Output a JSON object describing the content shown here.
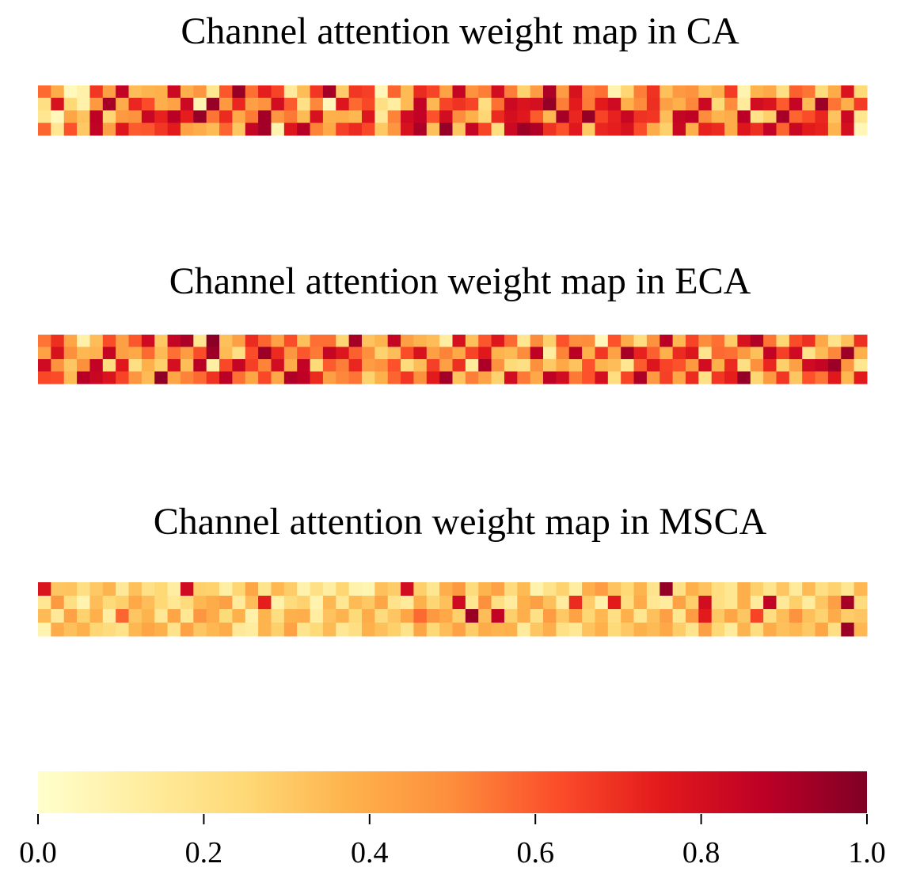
{
  "chart_data": [
    {
      "type": "heatmap",
      "title": "Channel attention weight map in CA",
      "rows": 4,
      "cols": 64,
      "values": [
        [
          0.57,
          0.4,
          0.04,
          0.1,
          0.68,
          0.44,
          0.86,
          0.34,
          0.37,
          0.38,
          0.83,
          0.39,
          0.47,
          0.17,
          0.61,
          0.95,
          0.56,
          0.74,
          0.65,
          0.14,
          0.34,
          0.68,
          0.92,
          0.29,
          0.68,
          0.66,
          0.06,
          0.58,
          0.35,
          0.71,
          0.65,
          0.43,
          0.85,
          0.48,
          0.53,
          0.81,
          0.53,
          0.27,
          0.45,
          0.91,
          0.45,
          0.79,
          0.53,
          0.56,
          0.08,
          0.26,
          0.53,
          0.69,
          0.33,
          0.46,
          0.48,
          0.33,
          0.39,
          0.67,
          0.08,
          0.37,
          0.41,
          0.21,
          0.59,
          0.55,
          0.23,
          0.4,
          0.78,
          0.24
        ],
        [
          0.21,
          0.79,
          0.25,
          0.1,
          0.46,
          0.92,
          0.4,
          0.72,
          0.63,
          0.39,
          0.43,
          0.83,
          0.07,
          0.95,
          0.46,
          0.72,
          0.44,
          0.48,
          0.81,
          0.6,
          0.2,
          0.51,
          0.05,
          0.77,
          0.57,
          0.64,
          0.21,
          0.12,
          0.35,
          0.86,
          0.36,
          0.65,
          0.69,
          0.65,
          0.22,
          0.56,
          0.83,
          0.78,
          0.8,
          0.96,
          0.53,
          0.75,
          0.54,
          0.75,
          0.82,
          0.38,
          0.5,
          0.7,
          0.44,
          0.38,
          0.51,
          0.83,
          0.24,
          0.5,
          0.14,
          0.81,
          0.78,
          0.6,
          0.85,
          0.35,
          0.94,
          0.55,
          0.39,
          0.67
        ],
        [
          0.17,
          0.05,
          0.42,
          0.32,
          0.87,
          0.26,
          0.46,
          0.48,
          0.84,
          0.73,
          0.88,
          0.74,
          0.96,
          0.55,
          0.71,
          0.41,
          0.54,
          0.93,
          0.47,
          0.54,
          0.35,
          0.79,
          0.38,
          0.39,
          0.36,
          0.77,
          0.15,
          0.52,
          0.82,
          0.86,
          0.62,
          0.81,
          0.5,
          0.38,
          0.26,
          0.71,
          0.8,
          0.76,
          0.6,
          0.36,
          0.92,
          0.72,
          0.96,
          0.65,
          0.73,
          0.84,
          0.69,
          0.68,
          0.34,
          0.85,
          0.87,
          0.5,
          0.37,
          0.4,
          0.88,
          0.19,
          0.28,
          0.92,
          0.58,
          0.63,
          0.72,
          0.32,
          0.83,
          0.17
        ],
        [
          0.58,
          0.16,
          0.62,
          0.3,
          0.86,
          0.44,
          0.77,
          0.6,
          0.61,
          0.68,
          0.75,
          0.43,
          0.4,
          0.35,
          0.58,
          0.31,
          0.85,
          0.93,
          0.08,
          0.77,
          0.89,
          0.52,
          0.41,
          0.66,
          0.71,
          0.64,
          0.3,
          0.47,
          0.79,
          0.91,
          0.33,
          0.96,
          0.31,
          0.85,
          0.65,
          0.22,
          0.83,
          0.94,
          0.9,
          0.69,
          0.62,
          0.76,
          0.3,
          0.72,
          0.74,
          0.79,
          0.63,
          0.4,
          0.28,
          0.84,
          0.39,
          0.73,
          0.71,
          0.4,
          0.77,
          0.7,
          0.86,
          0.58,
          0.84,
          0.75,
          0.73,
          0.37,
          0.8,
          0.06
        ]
      ]
    },
    {
      "type": "heatmap",
      "title": "Channel attention weight map in ECA",
      "rows": 4,
      "cols": 64,
      "values": [
        [
          0.55,
          0.7,
          0.42,
          0.1,
          0.34,
          0.63,
          0.44,
          0.61,
          0.82,
          0.3,
          0.85,
          0.91,
          0.17,
          0.98,
          0.33,
          0.44,
          0.71,
          0.58,
          0.43,
          0.63,
          0.33,
          0.56,
          0.56,
          0.26,
          0.92,
          0.32,
          0.37,
          0.85,
          0.44,
          0.37,
          0.34,
          0.12,
          0.8,
          0.33,
          0.61,
          0.77,
          0.57,
          0.17,
          0.5,
          0.28,
          0.62,
          0.49,
          0.5,
          0.05,
          0.62,
          0.4,
          0.22,
          0.48,
          0.88,
          0.36,
          0.65,
          0.5,
          0.56,
          0.29,
          0.79,
          0.9,
          0.55,
          0.26,
          0.63,
          0.7,
          0.41,
          0.19,
          0.33,
          0.7
        ],
        [
          0.43,
          0.79,
          0.49,
          0.36,
          0.37,
          0.85,
          0.44,
          0.41,
          0.57,
          0.35,
          0.56,
          0.45,
          0.63,
          0.94,
          0.35,
          0.21,
          0.63,
          0.94,
          0.71,
          0.47,
          0.61,
          0.54,
          0.85,
          0.77,
          0.59,
          0.49,
          0.27,
          0.34,
          0.63,
          0.79,
          0.44,
          0.52,
          0.41,
          0.65,
          0.76,
          0.37,
          0.35,
          0.5,
          0.87,
          0.12,
          0.52,
          0.88,
          0.38,
          0.68,
          0.43,
          0.92,
          0.73,
          0.59,
          0.38,
          0.71,
          0.77,
          0.18,
          0.57,
          0.56,
          0.46,
          0.33,
          0.86,
          0.66,
          0.82,
          0.19,
          0.35,
          0.51,
          0.94,
          0.38
        ],
        [
          0.82,
          0.48,
          0.31,
          0.49,
          0.86,
          0.22,
          0.76,
          0.21,
          0.38,
          0.28,
          0.8,
          0.34,
          0.88,
          0.11,
          0.64,
          0.85,
          0.66,
          0.52,
          0.81,
          0.4,
          0.86,
          0.24,
          0.6,
          0.53,
          0.72,
          0.45,
          0.48,
          0.62,
          0.23,
          0.34,
          0.66,
          0.44,
          0.7,
          0.14,
          0.91,
          0.48,
          0.24,
          0.21,
          0.49,
          0.3,
          0.41,
          0.32,
          0.62,
          0.37,
          0.34,
          0.17,
          0.6,
          0.77,
          0.65,
          0.62,
          0.46,
          0.81,
          0.38,
          0.71,
          0.21,
          0.49,
          0.72,
          0.28,
          0.44,
          0.82,
          0.85,
          0.94,
          0.47,
          0.17
        ],
        [
          0.64,
          0.63,
          0.35,
          0.89,
          0.84,
          0.78,
          0.65,
          0.47,
          0.35,
          0.97,
          0.42,
          0.52,
          0.57,
          0.69,
          0.88,
          0.56,
          0.42,
          0.64,
          0.41,
          0.9,
          0.87,
          0.71,
          0.44,
          0.51,
          0.55,
          0.27,
          0.38,
          0.58,
          0.68,
          0.49,
          0.75,
          0.93,
          0.32,
          0.53,
          0.43,
          0.27,
          0.81,
          0.54,
          0.41,
          0.87,
          0.81,
          0.54,
          0.62,
          0.8,
          0.22,
          0.65,
          0.91,
          0.46,
          0.66,
          0.42,
          0.71,
          0.2,
          0.68,
          0.74,
          0.96,
          0.26,
          0.46,
          0.68,
          0.31,
          0.62,
          0.55,
          0.76,
          0.36,
          0.75
        ]
      ]
    },
    {
      "type": "heatmap",
      "title": "Channel attention weight map in MSCA",
      "rows": 4,
      "cols": 64,
      "values": [
        [
          0.78,
          0.31,
          0.32,
          0.21,
          0.3,
          0.37,
          0.15,
          0.33,
          0.2,
          0.25,
          0.12,
          0.82,
          0.28,
          0.27,
          0.11,
          0.26,
          0.42,
          0.18,
          0.36,
          0.29,
          0.09,
          0.2,
          0.12,
          0.26,
          0.09,
          0.07,
          0.33,
          0.29,
          0.81,
          0.28,
          0.17,
          0.39,
          0.46,
          0.23,
          0.37,
          0.43,
          0.23,
          0.35,
          0.09,
          0.19,
          0.27,
          0.12,
          0.39,
          0.45,
          0.32,
          0.25,
          0.37,
          0.18,
          0.96,
          0.2,
          0.38,
          0.32,
          0.22,
          0.17,
          0.39,
          0.28,
          0.18,
          0.31,
          0.14,
          0.35,
          0.21,
          0.27,
          0.17,
          0.36
        ],
        [
          0.16,
          0.46,
          0.21,
          0.08,
          0.34,
          0.24,
          0.28,
          0.41,
          0.34,
          0.25,
          0.16,
          0.23,
          0.36,
          0.4,
          0.44,
          0.14,
          0.34,
          0.74,
          0.1,
          0.23,
          0.27,
          0.08,
          0.36,
          0.16,
          0.35,
          0.3,
          0.42,
          0.19,
          0.14,
          0.38,
          0.26,
          0.33,
          0.82,
          0.17,
          0.49,
          0.21,
          0.13,
          0.38,
          0.44,
          0.33,
          0.13,
          0.71,
          0.29,
          0.1,
          0.75,
          0.22,
          0.4,
          0.16,
          0.13,
          0.43,
          0.28,
          0.81,
          0.21,
          0.17,
          0.39,
          0.14,
          0.86,
          0.15,
          0.28,
          0.13,
          0.31,
          0.44,
          0.92,
          0.23
        ],
        [
          0.35,
          0.15,
          0.43,
          0.27,
          0.38,
          0.12,
          0.58,
          0.31,
          0.37,
          0.16,
          0.42,
          0.16,
          0.47,
          0.4,
          0.24,
          0.38,
          0.1,
          0.37,
          0.22,
          0.38,
          0.39,
          0.12,
          0.32,
          0.37,
          0.24,
          0.4,
          0.23,
          0.31,
          0.42,
          0.57,
          0.46,
          0.41,
          0.28,
          0.95,
          0.34,
          0.86,
          0.28,
          0.39,
          0.2,
          0.45,
          0.3,
          0.43,
          0.26,
          0.36,
          0.21,
          0.38,
          0.17,
          0.33,
          0.44,
          0.17,
          0.45,
          0.75,
          0.3,
          0.42,
          0.31,
          0.65,
          0.22,
          0.34,
          0.48,
          0.33,
          0.27,
          0.4,
          0.29,
          0.31
        ],
        [
          0.08,
          0.4,
          0.33,
          0.38,
          0.26,
          0.23,
          0.19,
          0.36,
          0.42,
          0.38,
          0.19,
          0.43,
          0.31,
          0.36,
          0.4,
          0.15,
          0.13,
          0.37,
          0.28,
          0.43,
          0.18,
          0.24,
          0.35,
          0.16,
          0.21,
          0.38,
          0.33,
          0.28,
          0.19,
          0.42,
          0.25,
          0.34,
          0.43,
          0.29,
          0.4,
          0.37,
          0.38,
          0.14,
          0.31,
          0.39,
          0.2,
          0.16,
          0.32,
          0.38,
          0.24,
          0.3,
          0.38,
          0.35,
          0.41,
          0.29,
          0.18,
          0.44,
          0.25,
          0.14,
          0.37,
          0.22,
          0.4,
          0.33,
          0.36,
          0.3,
          0.42,
          0.21,
          0.94,
          0.36
        ]
      ]
    },
    {
      "type": "colorbar",
      "range": [
        0.0,
        1.0
      ],
      "ticks": [
        "0.0",
        "0.2",
        "0.4",
        "0.6",
        "0.8",
        "1.0"
      ],
      "colormap": "YlOrRd",
      "stops": [
        "#ffffcc",
        "#ffeda0",
        "#fed976",
        "#feb24c",
        "#fd8d3c",
        "#fc4e2a",
        "#e31a1c",
        "#bd0026",
        "#800026"
      ]
    }
  ]
}
